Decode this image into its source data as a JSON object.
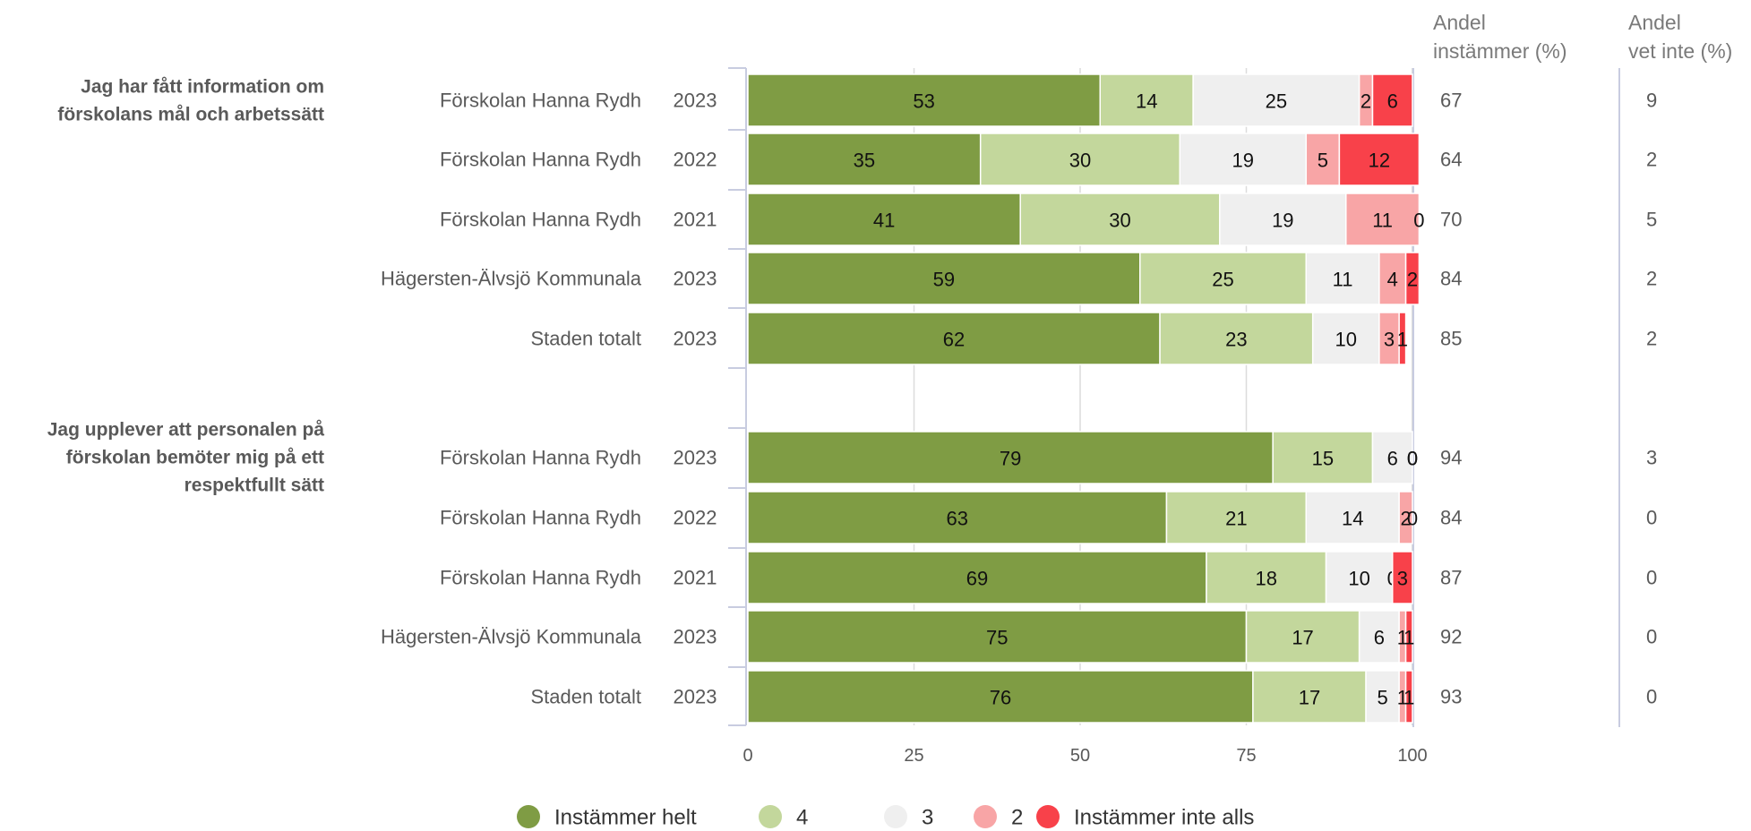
{
  "chart_data": {
    "type": "bar",
    "orientation": "horizontal",
    "stacked": true,
    "xlim": [
      0,
      100
    ],
    "xticks": [
      "0",
      "25",
      "50",
      "75",
      "100"
    ],
    "grid": true,
    "legend_position": "bottom",
    "legend": [
      {
        "name": "Instämmer helt",
        "color": "#7f9c44"
      },
      {
        "name": "4",
        "color": "#c3d79c"
      },
      {
        "name": "3",
        "color": "#efefef"
      },
      {
        "name": "2",
        "color": "#f8a5a6"
      },
      {
        "name": "Instämmer inte alls",
        "color": "#f8414a"
      }
    ],
    "columns": {
      "agree_line1": "Andel",
      "agree_line2": "instämmer (%)",
      "dontknow_line1": "Andel",
      "dontknow_line2": "vet inte (%)"
    },
    "groups": [
      {
        "question": [
          "Jag har fått information om",
          "förskolans mål och arbetssätt"
        ],
        "rows": [
          {
            "unit": "Förskolan Hanna Rydh",
            "year": "2023",
            "values": [
              53,
              14,
              25,
              2,
              6
            ],
            "agree": "67",
            "dontknow": "9"
          },
          {
            "unit": "Förskolan Hanna Rydh",
            "year": "2022",
            "values": [
              35,
              30,
              19,
              5,
              12
            ],
            "agree": "64",
            "dontknow": "2"
          },
          {
            "unit": "Förskolan Hanna Rydh",
            "year": "2021",
            "values": [
              41,
              30,
              19,
              11,
              0
            ],
            "agree": "70",
            "dontknow": "5"
          },
          {
            "unit": "Hägersten-Älvsjö Kommunala",
            "year": "2023",
            "values": [
              59,
              25,
              11,
              4,
              2
            ],
            "agree": "84",
            "dontknow": "2"
          },
          {
            "unit": "Staden totalt",
            "year": "2023",
            "values": [
              62,
              23,
              10,
              3,
              1
            ],
            "agree": "85",
            "dontknow": "2"
          }
        ]
      },
      {
        "question": [
          "Jag upplever att personalen på",
          "förskolan bemöter mig på ett",
          "respektfullt sätt"
        ],
        "rows": [
          {
            "unit": "Förskolan Hanna Rydh",
            "year": "2023",
            "values": [
              79,
              15,
              6,
              0,
              0
            ],
            "agree": "94",
            "dontknow": "3"
          },
          {
            "unit": "Förskolan Hanna Rydh",
            "year": "2022",
            "values": [
              63,
              21,
              14,
              2,
              0
            ],
            "agree": "84",
            "dontknow": "0"
          },
          {
            "unit": "Förskolan Hanna Rydh",
            "year": "2021",
            "values": [
              69,
              18,
              10,
              0,
              3
            ],
            "agree": "87",
            "dontknow": "0"
          },
          {
            "unit": "Hägersten-Älvsjö Kommunala",
            "year": "2023",
            "values": [
              75,
              17,
              6,
              1,
              1
            ],
            "agree": "92",
            "dontknow": "0"
          },
          {
            "unit": "Staden totalt",
            "year": "2023",
            "values": [
              76,
              17,
              5,
              1,
              1
            ],
            "agree": "93",
            "dontknow": "0"
          }
        ]
      }
    ]
  }
}
